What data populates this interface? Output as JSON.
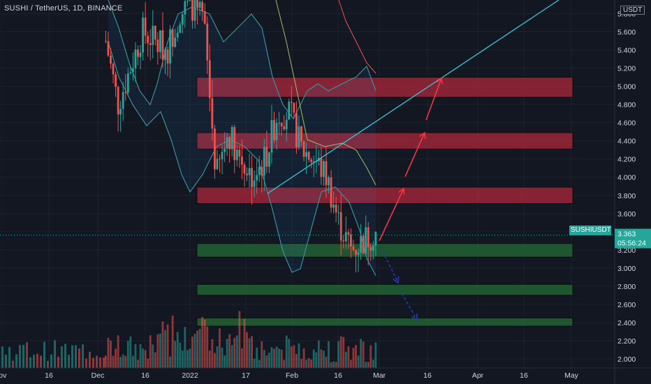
{
  "header": {
    "title": "SUSHI / TetherUS, 1D, BINANCE"
  },
  "price_scale": {
    "unit": "USDT",
    "labels": [
      "5.800",
      "5.600",
      "5.400",
      "5.200",
      "5.000",
      "4.800",
      "4.600",
      "4.400",
      "4.200",
      "4.000",
      "3.800",
      "3.600",
      "3.400",
      "3.200",
      "3.000",
      "2.800",
      "2.600",
      "2.400",
      "2.200",
      "2.000"
    ]
  },
  "current": {
    "symbol": "SUSHIUSDT",
    "price": "3.363",
    "countdown": "05:56:24",
    "value": 3.363
  },
  "time_axis": {
    "labels": [
      "Nov",
      "16",
      "Dec",
      "16",
      "2022",
      "17",
      "Feb",
      "16",
      "Mar",
      "16",
      "Apr",
      "16",
      "May"
    ]
  },
  "chart_data": {
    "type": "candlestick",
    "title": "SUSHI / TetherUS, 1D, BINANCE",
    "ylim": [
      1.9,
      5.95
    ],
    "x": [
      "2021-11-01",
      "2021-11-16",
      "2021-12-01",
      "2021-12-16",
      "2022-01-01",
      "2022-01-17",
      "2022-02-01",
      "2022-02-16",
      "2022-03-01",
      "2022-03-16",
      "2022-04-01",
      "2022-04-16",
      "2022-05-01"
    ],
    "zones": {
      "resistance": [
        [
          4.88,
          5.1
        ],
        [
          4.31,
          4.49
        ],
        [
          3.71,
          3.89
        ]
      ],
      "support": [
        [
          3.12,
          3.27
        ],
        [
          2.7,
          2.82
        ],
        [
          2.36,
          2.45
        ]
      ]
    },
    "trendline": [
      [
        3.82,
        "2022-01-20"
      ],
      [
        5.95,
        "2022-04-30"
      ]
    ],
    "close_prices": [
      5.5,
      4.8,
      5.2,
      5.6,
      5.5,
      5.4,
      5.8,
      5.9,
      5.7,
      4.0,
      4.5,
      4.2,
      4.0,
      4.2,
      4.7,
      4.7,
      4.3,
      4.2,
      4.0,
      3.5,
      3.2,
      3.3,
      3.4
    ]
  },
  "colors": {
    "up": "#26a69a",
    "down": "#ef5350",
    "trendline": "#36c5d6",
    "arrow_up": "#f23645",
    "arrow_down": "#1e3fb0"
  }
}
